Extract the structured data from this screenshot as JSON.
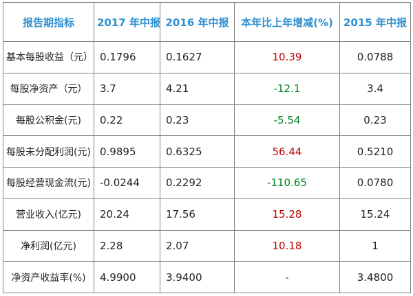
{
  "colors": {
    "header_text": "#2e8fcf",
    "increase": "#c00000",
    "decrease": "#00841f",
    "border": "#7f7f7f"
  },
  "headers": [
    "报告期指标",
    "2017 年中报",
    "2016 年中报",
    "本年比上年增减(%)",
    "2015 年中报"
  ],
  "rows": [
    {
      "label": "基本每股收益（元）",
      "y2017": "0.1796",
      "y2016": "0.1627",
      "change": "10.39",
      "direction": "up",
      "y2015": "0.0788"
    },
    {
      "label": "每股净资产（元）",
      "y2017": "3.7",
      "y2016": "4.21",
      "change": "-12.1",
      "direction": "down",
      "y2015": "3.4"
    },
    {
      "label": "每股公积金(元)",
      "y2017": "0.22",
      "y2016": "0.23",
      "change": "-5.54",
      "direction": "down",
      "y2015": "0.23"
    },
    {
      "label": "每股未分配利润(元)",
      "y2017": "0.9895",
      "y2016": "0.6325",
      "change": "56.44",
      "direction": "up",
      "y2015": "0.5210"
    },
    {
      "label": "每股经营现金流(元)",
      "y2017": "-0.0244",
      "y2016": "0.2292",
      "change": "-110.65",
      "direction": "down",
      "y2015": "0.0780"
    },
    {
      "label": "营业收入(亿元)",
      "y2017": "20.24",
      "y2016": "17.56",
      "change": "15.28",
      "direction": "up",
      "y2015": "15.24"
    },
    {
      "label": "净利润(亿元)",
      "y2017": "2.28",
      "y2016": "2.07",
      "change": "10.18",
      "direction": "up",
      "y2015": "1"
    },
    {
      "label": "净资产收益率(%)",
      "y2017": "4.9900",
      "y2016": "3.9400",
      "change": "-",
      "direction": "flat",
      "y2015": "3.4800"
    }
  ]
}
